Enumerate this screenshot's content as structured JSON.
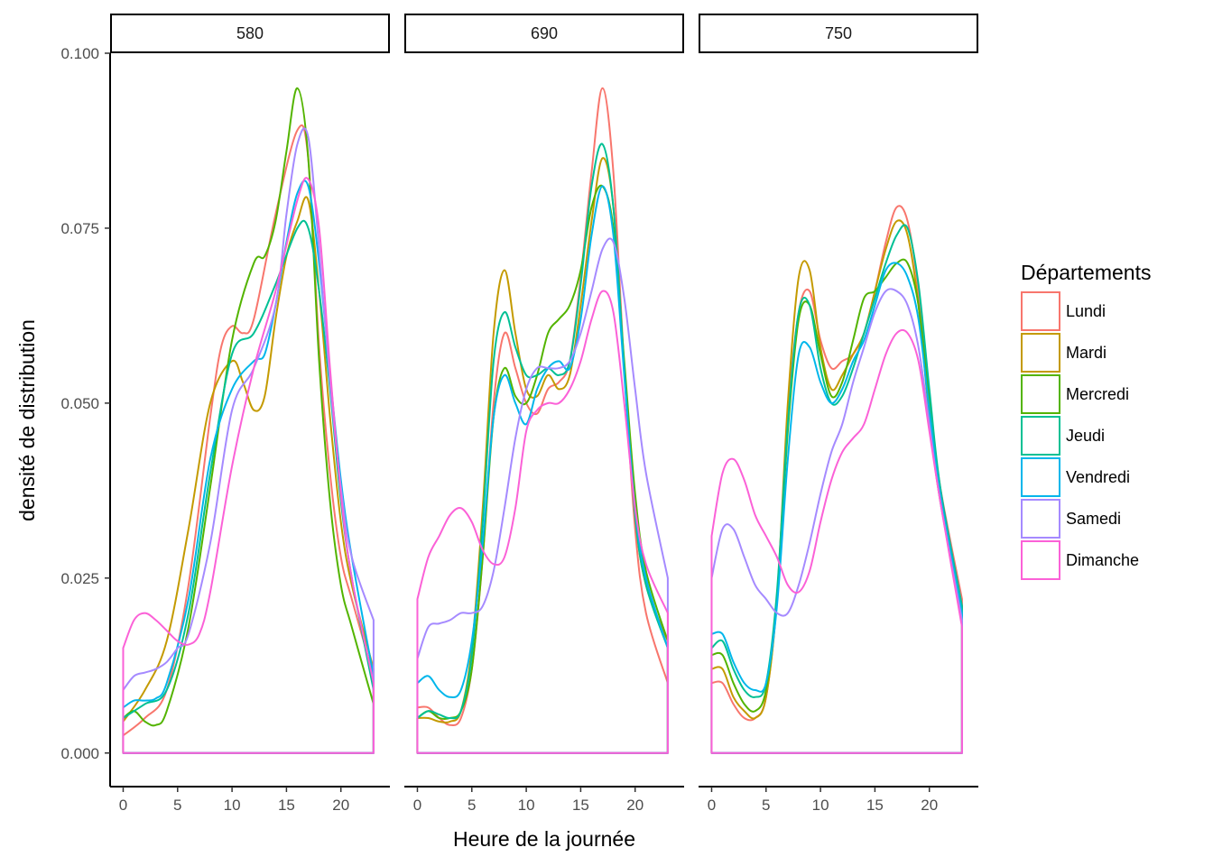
{
  "chart_data": {
    "type": "area",
    "facet_label_prefix": "",
    "panels": [
      "580",
      "690",
      "750"
    ],
    "xlabel": "Heure de la journée",
    "ylabel": "densité de distribution",
    "xlim": [
      -1.2,
      24.5
    ],
    "xticks": [
      0,
      5,
      10,
      15,
      20
    ],
    "ylim": [
      -0.0048,
      0.1
    ],
    "yticks": [
      0.0,
      0.025,
      0.05,
      0.075,
      0.1
    ],
    "ytick_labels": [
      "0.000",
      "0.025",
      "0.050",
      "0.075",
      "0.100"
    ],
    "grid": false,
    "x_domain": [
      0,
      23
    ],
    "legend": {
      "title": "Départements",
      "position": "right",
      "entries": [
        "Lundi",
        "Mardi",
        "Mercredi",
        "Jeudi",
        "Vendredi",
        "Samedi",
        "Dimanche"
      ]
    },
    "series_colors": {
      "Lundi": "#F8766D",
      "Mardi": "#C49A00",
      "Mercredi": "#53B400",
      "Jeudi": "#00C094",
      "Vendredi": "#00B6EB",
      "Samedi": "#A58AFF",
      "Dimanche": "#FB61D7"
    },
    "series": [
      {
        "panel": "580",
        "name": "Lundi",
        "x": [
          0,
          2,
          4,
          6,
          8,
          9,
          10,
          11,
          12,
          14,
          16,
          17,
          18,
          19,
          20,
          21,
          23
        ],
        "y": [
          0.0025,
          0.005,
          0.009,
          0.024,
          0.048,
          0.058,
          0.061,
          0.06,
          0.062,
          0.077,
          0.089,
          0.085,
          0.058,
          0.04,
          0.028,
          0.022,
          0.011
        ]
      },
      {
        "panel": "580",
        "name": "Mardi",
        "x": [
          0,
          2,
          4,
          6,
          8,
          10,
          11,
          12,
          13,
          14,
          15,
          16,
          17,
          18,
          19,
          20,
          21,
          23
        ],
        "y": [
          0.0045,
          0.009,
          0.016,
          0.032,
          0.05,
          0.056,
          0.053,
          0.049,
          0.051,
          0.062,
          0.071,
          0.076,
          0.079,
          0.066,
          0.048,
          0.033,
          0.024,
          0.012
        ]
      },
      {
        "panel": "580",
        "name": "Mercredi",
        "x": [
          0,
          1,
          2,
          3,
          4,
          6,
          8,
          10,
          12,
          13,
          14,
          15,
          16,
          17,
          18,
          19,
          20,
          21,
          23
        ],
        "y": [
          0.005,
          0.006,
          0.0045,
          0.004,
          0.006,
          0.018,
          0.038,
          0.059,
          0.07,
          0.071,
          0.076,
          0.086,
          0.095,
          0.085,
          0.056,
          0.036,
          0.024,
          0.018,
          0.007
        ]
      },
      {
        "panel": "580",
        "name": "Jeudi",
        "x": [
          0,
          2,
          4,
          6,
          8,
          10,
          12,
          14,
          16,
          17,
          18,
          19,
          20,
          21,
          23
        ],
        "y": [
          0.005,
          0.007,
          0.009,
          0.02,
          0.04,
          0.057,
          0.06,
          0.067,
          0.075,
          0.075,
          0.066,
          0.052,
          0.036,
          0.025,
          0.009
        ]
      },
      {
        "panel": "580",
        "name": "Vendredi",
        "x": [
          0,
          1,
          2,
          3,
          4,
          6,
          8,
          10,
          12,
          13,
          14,
          15,
          16,
          17,
          18,
          19,
          20,
          21,
          23
        ],
        "y": [
          0.0065,
          0.0075,
          0.0075,
          0.0078,
          0.01,
          0.022,
          0.042,
          0.052,
          0.056,
          0.057,
          0.064,
          0.073,
          0.08,
          0.081,
          0.07,
          0.054,
          0.039,
          0.028,
          0.011
        ]
      },
      {
        "panel": "580",
        "name": "Samedi",
        "x": [
          0,
          1,
          2,
          3,
          4,
          5,
          6,
          8,
          10,
          12,
          14,
          15,
          16,
          17,
          18,
          19,
          20,
          21,
          23
        ],
        "y": [
          0.009,
          0.011,
          0.0115,
          0.012,
          0.013,
          0.015,
          0.017,
          0.03,
          0.049,
          0.055,
          0.064,
          0.077,
          0.087,
          0.088,
          0.072,
          0.053,
          0.038,
          0.028,
          0.019
        ]
      },
      {
        "panel": "580",
        "name": "Dimanche",
        "x": [
          0,
          1,
          2,
          3,
          4,
          5,
          6,
          7,
          8,
          10,
          12,
          14,
          16,
          17,
          18,
          19,
          20,
          21,
          23
        ],
        "y": [
          0.015,
          0.019,
          0.02,
          0.019,
          0.0175,
          0.016,
          0.0155,
          0.017,
          0.023,
          0.041,
          0.055,
          0.066,
          0.079,
          0.082,
          0.075,
          0.055,
          0.037,
          0.025,
          0.01
        ]
      },
      {
        "panel": "690",
        "name": "Lundi",
        "x": [
          0,
          1,
          2,
          3,
          4,
          5,
          6,
          7,
          8,
          9,
          10,
          11,
          12,
          13,
          14,
          15,
          16,
          17,
          18,
          19,
          20,
          21,
          23
        ],
        "y": [
          0.0065,
          0.0065,
          0.005,
          0.004,
          0.005,
          0.012,
          0.028,
          0.05,
          0.06,
          0.055,
          0.05,
          0.0485,
          0.052,
          0.053,
          0.056,
          0.068,
          0.083,
          0.095,
          0.083,
          0.055,
          0.032,
          0.02,
          0.01
        ]
      },
      {
        "panel": "690",
        "name": "Mardi",
        "x": [
          0,
          1,
          2,
          3,
          4,
          5,
          6,
          7,
          8,
          9,
          10,
          11,
          12,
          13,
          14,
          15,
          16,
          17,
          18,
          19,
          20,
          21,
          23
        ],
        "y": [
          0.005,
          0.005,
          0.0045,
          0.0045,
          0.006,
          0.015,
          0.035,
          0.06,
          0.069,
          0.06,
          0.052,
          0.051,
          0.054,
          0.052,
          0.054,
          0.064,
          0.076,
          0.085,
          0.078,
          0.055,
          0.034,
          0.024,
          0.016
        ]
      },
      {
        "panel": "690",
        "name": "Mercredi",
        "x": [
          0,
          1,
          2,
          3,
          4,
          5,
          6,
          7,
          8,
          9,
          10,
          11,
          12,
          13,
          14,
          15,
          16,
          17,
          18,
          19,
          20,
          21,
          23
        ],
        "y": [
          0.005,
          0.006,
          0.005,
          0.005,
          0.006,
          0.012,
          0.028,
          0.048,
          0.055,
          0.051,
          0.05,
          0.054,
          0.06,
          0.062,
          0.064,
          0.069,
          0.078,
          0.081,
          0.075,
          0.056,
          0.037,
          0.026,
          0.016
        ]
      },
      {
        "panel": "690",
        "name": "Jeudi",
        "x": [
          0,
          1,
          2,
          3,
          4,
          5,
          6,
          7,
          8,
          9,
          10,
          11,
          12,
          13,
          14,
          15,
          16,
          17,
          18,
          19,
          20,
          21,
          23
        ],
        "y": [
          0.005,
          0.006,
          0.0055,
          0.005,
          0.006,
          0.014,
          0.033,
          0.056,
          0.063,
          0.058,
          0.054,
          0.054,
          0.055,
          0.054,
          0.056,
          0.067,
          0.081,
          0.087,
          0.078,
          0.055,
          0.034,
          0.024,
          0.015
        ]
      },
      {
        "panel": "690",
        "name": "Vendredi",
        "x": [
          0,
          1,
          2,
          3,
          4,
          5,
          6,
          7,
          8,
          9,
          10,
          11,
          12,
          13,
          14,
          15,
          16,
          17,
          18,
          19,
          20,
          21,
          23
        ],
        "y": [
          0.01,
          0.011,
          0.009,
          0.008,
          0.009,
          0.016,
          0.03,
          0.048,
          0.054,
          0.05,
          0.047,
          0.052,
          0.055,
          0.056,
          0.055,
          0.062,
          0.074,
          0.081,
          0.074,
          0.054,
          0.035,
          0.025,
          0.015
        ]
      },
      {
        "panel": "690",
        "name": "Samedi",
        "x": [
          0,
          1,
          2,
          3,
          4,
          5,
          6,
          7,
          8,
          9,
          10,
          11,
          12,
          13,
          14,
          15,
          16,
          17,
          18,
          19,
          20,
          21,
          23
        ],
        "y": [
          0.0135,
          0.018,
          0.0185,
          0.019,
          0.02,
          0.02,
          0.021,
          0.026,
          0.035,
          0.045,
          0.052,
          0.055,
          0.055,
          0.055,
          0.056,
          0.06,
          0.066,
          0.072,
          0.073,
          0.065,
          0.052,
          0.04,
          0.025
        ]
      },
      {
        "panel": "690",
        "name": "Dimanche",
        "x": [
          0,
          1,
          2,
          3,
          4,
          5,
          6,
          7,
          8,
          9,
          10,
          11,
          12,
          13,
          14,
          15,
          16,
          17,
          18,
          19,
          20,
          21,
          23
        ],
        "y": [
          0.022,
          0.028,
          0.031,
          0.034,
          0.035,
          0.033,
          0.029,
          0.027,
          0.028,
          0.035,
          0.046,
          0.049,
          0.05,
          0.05,
          0.052,
          0.056,
          0.062,
          0.066,
          0.063,
          0.05,
          0.035,
          0.027,
          0.02
        ]
      },
      {
        "panel": "750",
        "name": "Lundi",
        "x": [
          0,
          1,
          2,
          3,
          4,
          5,
          6,
          7,
          8,
          9,
          10,
          11,
          12,
          13,
          14,
          15,
          16,
          17,
          18,
          19,
          20,
          21,
          23
        ],
        "y": [
          0.01,
          0.01,
          0.007,
          0.005,
          0.005,
          0.008,
          0.022,
          0.048,
          0.063,
          0.066,
          0.059,
          0.055,
          0.056,
          0.057,
          0.06,
          0.066,
          0.073,
          0.078,
          0.076,
          0.066,
          0.05,
          0.038,
          0.022
        ]
      },
      {
        "panel": "750",
        "name": "Mardi",
        "x": [
          0,
          1,
          2,
          3,
          4,
          5,
          6,
          7,
          8,
          9,
          10,
          11,
          12,
          13,
          14,
          15,
          16,
          17,
          18,
          19,
          20,
          21,
          23
        ],
        "y": [
          0.012,
          0.012,
          0.008,
          0.006,
          0.005,
          0.008,
          0.022,
          0.05,
          0.068,
          0.069,
          0.058,
          0.052,
          0.054,
          0.057,
          0.06,
          0.066,
          0.072,
          0.076,
          0.074,
          0.064,
          0.048,
          0.036,
          0.021
        ]
      },
      {
        "panel": "750",
        "name": "Mercredi",
        "x": [
          0,
          1,
          2,
          3,
          4,
          5,
          6,
          7,
          8,
          9,
          10,
          11,
          12,
          13,
          14,
          15,
          16,
          17,
          18,
          19,
          20,
          21,
          23
        ],
        "y": [
          0.014,
          0.014,
          0.01,
          0.007,
          0.006,
          0.009,
          0.022,
          0.046,
          0.062,
          0.064,
          0.057,
          0.051,
          0.053,
          0.059,
          0.065,
          0.066,
          0.068,
          0.07,
          0.07,
          0.064,
          0.05,
          0.037,
          0.02
        ]
      },
      {
        "panel": "750",
        "name": "Jeudi",
        "x": [
          0,
          1,
          2,
          3,
          4,
          5,
          6,
          7,
          8,
          9,
          10,
          11,
          12,
          13,
          14,
          15,
          16,
          17,
          18,
          19,
          20,
          21,
          23
        ],
        "y": [
          0.015,
          0.016,
          0.012,
          0.009,
          0.008,
          0.01,
          0.023,
          0.047,
          0.063,
          0.064,
          0.055,
          0.05,
          0.051,
          0.055,
          0.06,
          0.065,
          0.07,
          0.074,
          0.075,
          0.067,
          0.052,
          0.038,
          0.021
        ]
      },
      {
        "panel": "750",
        "name": "Vendredi",
        "x": [
          0,
          1,
          2,
          3,
          4,
          5,
          6,
          7,
          8,
          9,
          10,
          11,
          12,
          13,
          14,
          15,
          16,
          17,
          18,
          19,
          20,
          21,
          23
        ],
        "y": [
          0.017,
          0.017,
          0.013,
          0.01,
          0.009,
          0.01,
          0.021,
          0.042,
          0.057,
          0.058,
          0.053,
          0.05,
          0.052,
          0.056,
          0.059,
          0.064,
          0.069,
          0.07,
          0.068,
          0.062,
          0.049,
          0.037,
          0.02
        ]
      },
      {
        "panel": "750",
        "name": "Samedi",
        "x": [
          0,
          1,
          2,
          3,
          4,
          5,
          6,
          7,
          8,
          9,
          10,
          11,
          12,
          13,
          14,
          15,
          16,
          17,
          18,
          19,
          20,
          21,
          23
        ],
        "y": [
          0.025,
          0.032,
          0.032,
          0.028,
          0.024,
          0.022,
          0.02,
          0.02,
          0.024,
          0.03,
          0.037,
          0.043,
          0.047,
          0.053,
          0.058,
          0.063,
          0.066,
          0.066,
          0.064,
          0.058,
          0.047,
          0.036,
          0.019
        ]
      },
      {
        "panel": "750",
        "name": "Dimanche",
        "x": [
          0,
          1,
          2,
          3,
          4,
          5,
          6,
          7,
          8,
          9,
          10,
          11,
          12,
          13,
          14,
          15,
          16,
          17,
          18,
          19,
          20,
          21,
          23
        ],
        "y": [
          0.031,
          0.04,
          0.042,
          0.039,
          0.034,
          0.031,
          0.028,
          0.024,
          0.023,
          0.026,
          0.033,
          0.039,
          0.043,
          0.045,
          0.047,
          0.052,
          0.057,
          0.06,
          0.06,
          0.056,
          0.046,
          0.036,
          0.018
        ]
      }
    ]
  }
}
